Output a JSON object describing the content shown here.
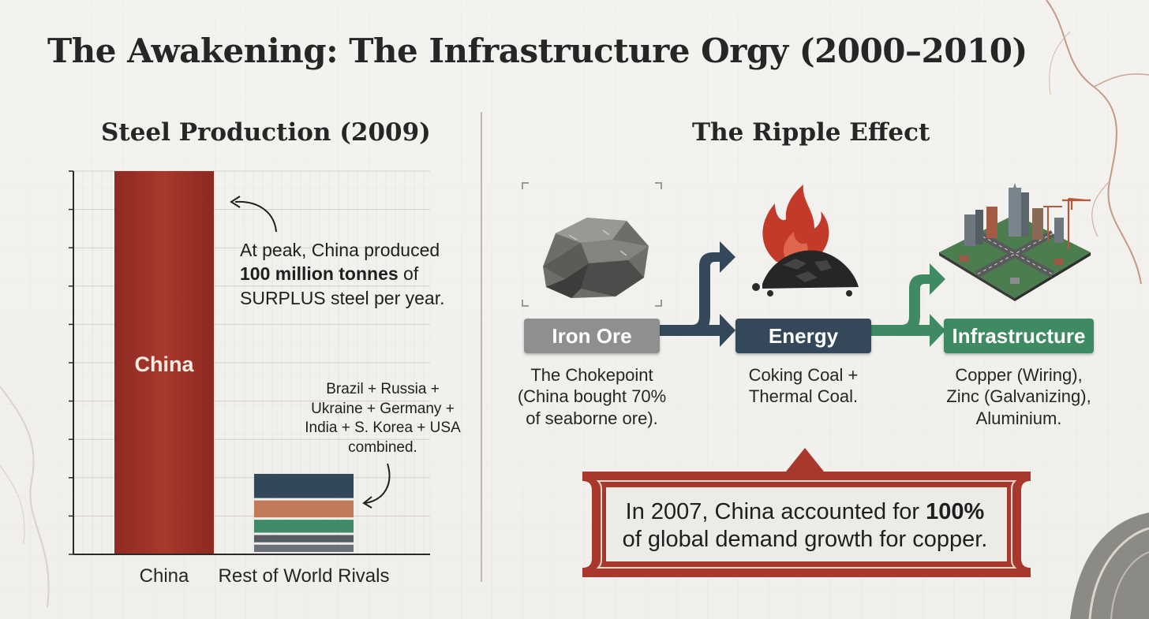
{
  "title": "The Awakening: The Infrastructure Orgy (2000–2010)",
  "left_section": {
    "title": "Steel Production (2009)",
    "annotation": {
      "pre": "At peak, China produced",
      "bold": "100 million tonnes",
      "mid": "of",
      "post": "SURPLUS steel per year."
    },
    "rivals_note": [
      "Brazil + Russia +",
      "Ukraine + Germany +",
      "India + S. Korea + USA",
      "combined."
    ]
  },
  "chart_data": {
    "type": "bar",
    "title": "Steel Production (2009)",
    "categories": [
      "China",
      "Rest of World Rivals"
    ],
    "values": [
      100,
      21
    ],
    "ylim": [
      0,
      100
    ],
    "bar_inner_labels": [
      "China",
      ""
    ],
    "grid": true,
    "colors": {
      "china": "#a8382c",
      "rivals": [
        "#33475a",
        "#c27a5b",
        "#3f8a68",
        "#565c63",
        "#6c7178"
      ]
    }
  },
  "right_section": {
    "title": "The Ripple Effect",
    "nodes": [
      {
        "label": "Iron Ore",
        "icon": "iron-ore-rock-icon",
        "color": "#8e8f8e",
        "desc": [
          "The Chokepoint",
          "(China bought 70%",
          "of seaborne ore)."
        ]
      },
      {
        "label": "Energy",
        "icon": "coal-fire-icon",
        "color": "#34485a",
        "desc": [
          "Coking Coal +",
          "Thermal Coal."
        ]
      },
      {
        "label": "Infrastructure",
        "icon": "city-construction-icon",
        "color": "#3e8a62",
        "desc": [
          "Copper (Wiring),",
          "Zinc (Galvanizing),",
          "Aluminium."
        ]
      }
    ],
    "callout": {
      "pre": "In 2007, China accounted for",
      "bold": "100%",
      "post": "of global demand growth for copper."
    }
  },
  "colors": {
    "accent_red": "#a8382c",
    "navy": "#34485a",
    "green": "#3e8a62",
    "grey": "#8e8f8e"
  }
}
